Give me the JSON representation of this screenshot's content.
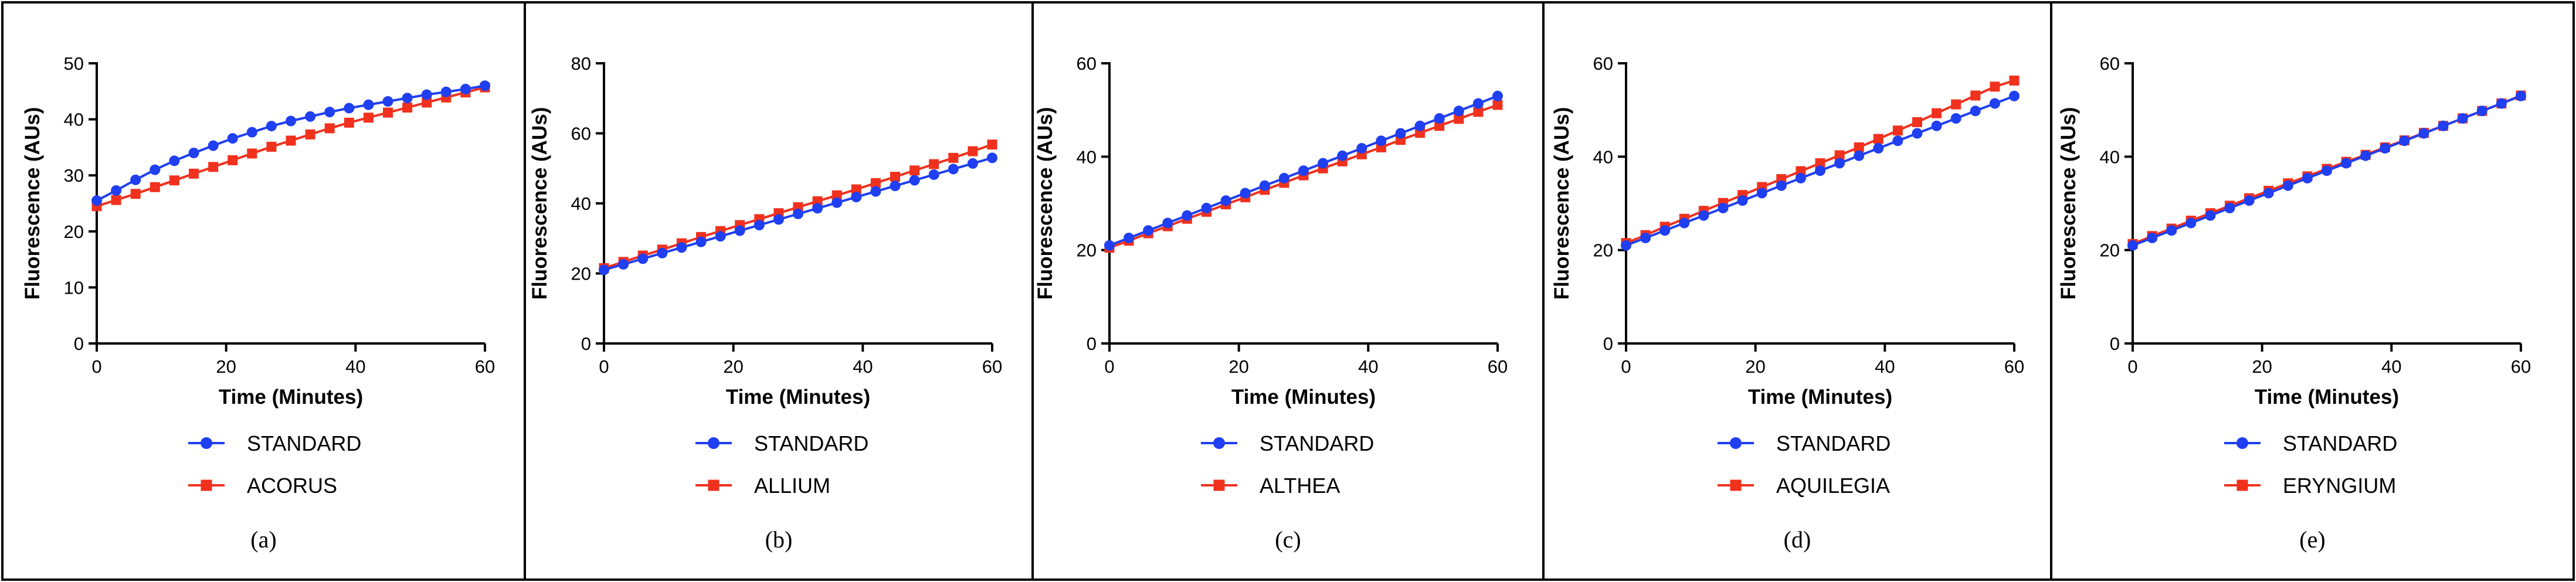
{
  "colors": {
    "standard": "#1f3ff0",
    "sample": "#f0311e"
  },
  "chart_data": [
    {
      "type": "line",
      "caption": "(a)",
      "xlabel": "Time (Minutes)",
      "ylabel": "Fluorescence (AUs)",
      "xlim": [
        0,
        60
      ],
      "ylim": [
        0,
        50
      ],
      "xticks": [
        0,
        20,
        40,
        60
      ],
      "yticks": [
        0,
        10,
        20,
        30,
        40,
        50
      ],
      "grid": false,
      "legend_position": "bottom-center",
      "x": [
        0,
        3,
        6,
        9,
        12,
        15,
        18,
        21,
        24,
        27,
        30,
        33,
        36,
        39,
        42,
        45,
        48,
        51,
        54,
        57,
        60
      ],
      "series": [
        {
          "name": "STANDARD",
          "marker": "circle",
          "values": [
            25.5,
            27.3,
            29.2,
            31.0,
            32.6,
            34.0,
            35.3,
            36.6,
            37.7,
            38.8,
            39.7,
            40.5,
            41.3,
            42.0,
            42.6,
            43.2,
            43.8,
            44.4,
            44.9,
            45.4,
            46.0
          ]
        },
        {
          "name": "ACORUS",
          "marker": "square",
          "values": [
            24.5,
            25.6,
            26.7,
            27.9,
            29.1,
            30.3,
            31.5,
            32.7,
            33.9,
            35.1,
            36.2,
            37.3,
            38.4,
            39.4,
            40.3,
            41.2,
            42.1,
            43.0,
            43.9,
            44.8,
            45.7
          ]
        }
      ]
    },
    {
      "type": "line",
      "caption": "(b)",
      "xlabel": "Time (Minutes)",
      "ylabel": "Fluorescence (AUs)",
      "xlim": [
        0,
        60
      ],
      "ylim": [
        0,
        80
      ],
      "xticks": [
        0,
        20,
        40,
        60
      ],
      "yticks": [
        0,
        20,
        40,
        60,
        80
      ],
      "grid": false,
      "legend_position": "bottom-center",
      "x": [
        0,
        3,
        6,
        9,
        12,
        15,
        18,
        21,
        24,
        27,
        30,
        33,
        36,
        39,
        42,
        45,
        48,
        51,
        54,
        57,
        60
      ],
      "series": [
        {
          "name": "STANDARD",
          "marker": "circle",
          "values": [
            21.0,
            22.6,
            24.2,
            25.8,
            27.4,
            29.0,
            30.6,
            32.2,
            33.8,
            35.4,
            37.0,
            38.6,
            40.2,
            41.8,
            43.4,
            45.0,
            46.6,
            48.2,
            49.8,
            51.4,
            53.0
          ]
        },
        {
          "name": "ALLIUM",
          "marker": "square",
          "values": [
            21.5,
            23.3,
            25.1,
            26.8,
            28.6,
            30.4,
            32.1,
            33.8,
            35.5,
            37.2,
            38.9,
            40.6,
            42.3,
            44.0,
            45.8,
            47.6,
            49.4,
            51.2,
            53.0,
            54.9,
            56.8
          ]
        }
      ]
    },
    {
      "type": "line",
      "caption": "(c)",
      "xlabel": "Time (Minutes)",
      "ylabel": "Fluorescence (AUs)",
      "xlim": [
        0,
        60
      ],
      "ylim": [
        0,
        60
      ],
      "xticks": [
        0,
        20,
        40,
        60
      ],
      "yticks": [
        0,
        20,
        40,
        60
      ],
      "grid": false,
      "legend_position": "bottom-center",
      "x": [
        0,
        3,
        6,
        9,
        12,
        15,
        18,
        21,
        24,
        27,
        30,
        33,
        36,
        39,
        42,
        45,
        48,
        51,
        54,
        57,
        60
      ],
      "series": [
        {
          "name": "STANDARD",
          "marker": "circle",
          "values": [
            21.0,
            22.6,
            24.2,
            25.8,
            27.4,
            29.0,
            30.6,
            32.2,
            33.8,
            35.4,
            37.0,
            38.6,
            40.2,
            41.8,
            43.4,
            45.0,
            46.6,
            48.2,
            49.8,
            51.4,
            53.0
          ]
        },
        {
          "name": "ALTHEA",
          "marker": "square",
          "values": [
            20.5,
            22.0,
            23.6,
            25.1,
            26.7,
            28.2,
            29.8,
            31.3,
            32.9,
            34.4,
            36.0,
            37.5,
            39.0,
            40.5,
            42.0,
            43.6,
            45.1,
            46.6,
            48.1,
            49.6,
            51.1
          ]
        }
      ]
    },
    {
      "type": "line",
      "caption": "(d)",
      "xlabel": "Time (Minutes)",
      "ylabel": "Fluorescence (AUs)",
      "xlim": [
        0,
        60
      ],
      "ylim": [
        0,
        60
      ],
      "xticks": [
        0,
        20,
        40,
        60
      ],
      "yticks": [
        0,
        20,
        40,
        60
      ],
      "grid": false,
      "legend_position": "bottom-center",
      "x": [
        0,
        3,
        6,
        9,
        12,
        15,
        18,
        21,
        24,
        27,
        30,
        33,
        36,
        39,
        42,
        45,
        48,
        51,
        54,
        57,
        60
      ],
      "series": [
        {
          "name": "STANDARD",
          "marker": "circle",
          "values": [
            21.0,
            22.6,
            24.2,
            25.8,
            27.4,
            29.0,
            30.6,
            32.2,
            33.8,
            35.4,
            37.0,
            38.6,
            40.2,
            41.8,
            43.4,
            45.0,
            46.6,
            48.2,
            49.8,
            51.4,
            53.0
          ]
        },
        {
          "name": "AQUILEGIA",
          "marker": "square",
          "values": [
            21.5,
            23.2,
            25.0,
            26.7,
            28.4,
            30.1,
            31.8,
            33.5,
            35.2,
            36.9,
            38.6,
            40.3,
            42.0,
            43.8,
            45.6,
            47.4,
            49.3,
            51.2,
            53.1,
            55.0,
            56.3
          ]
        }
      ]
    },
    {
      "type": "line",
      "caption": "(e)",
      "xlabel": "Time (Minutes)",
      "ylabel": "Fluorescence (AUs)",
      "xlim": [
        0,
        60
      ],
      "ylim": [
        0,
        60
      ],
      "xticks": [
        0,
        20,
        40,
        60
      ],
      "yticks": [
        0,
        20,
        40,
        60
      ],
      "grid": false,
      "legend_position": "bottom-center",
      "x": [
        0,
        3,
        6,
        9,
        12,
        15,
        18,
        21,
        24,
        27,
        30,
        33,
        36,
        39,
        42,
        45,
        48,
        51,
        54,
        57,
        60
      ],
      "series": [
        {
          "name": "STANDARD",
          "marker": "circle",
          "values": [
            21.0,
            22.6,
            24.2,
            25.8,
            27.4,
            29.0,
            30.6,
            32.2,
            33.8,
            35.4,
            37.0,
            38.6,
            40.2,
            41.8,
            43.4,
            45.0,
            46.6,
            48.2,
            49.8,
            51.4,
            53.0
          ]
        },
        {
          "name": "ERYNGIUM",
          "marker": "square",
          "values": [
            21.3,
            23.0,
            24.6,
            26.3,
            27.9,
            29.5,
            31.1,
            32.7,
            34.3,
            35.8,
            37.4,
            38.9,
            40.4,
            42.0,
            43.5,
            45.1,
            46.6,
            48.2,
            49.8,
            51.4,
            53.1
          ]
        }
      ]
    }
  ]
}
